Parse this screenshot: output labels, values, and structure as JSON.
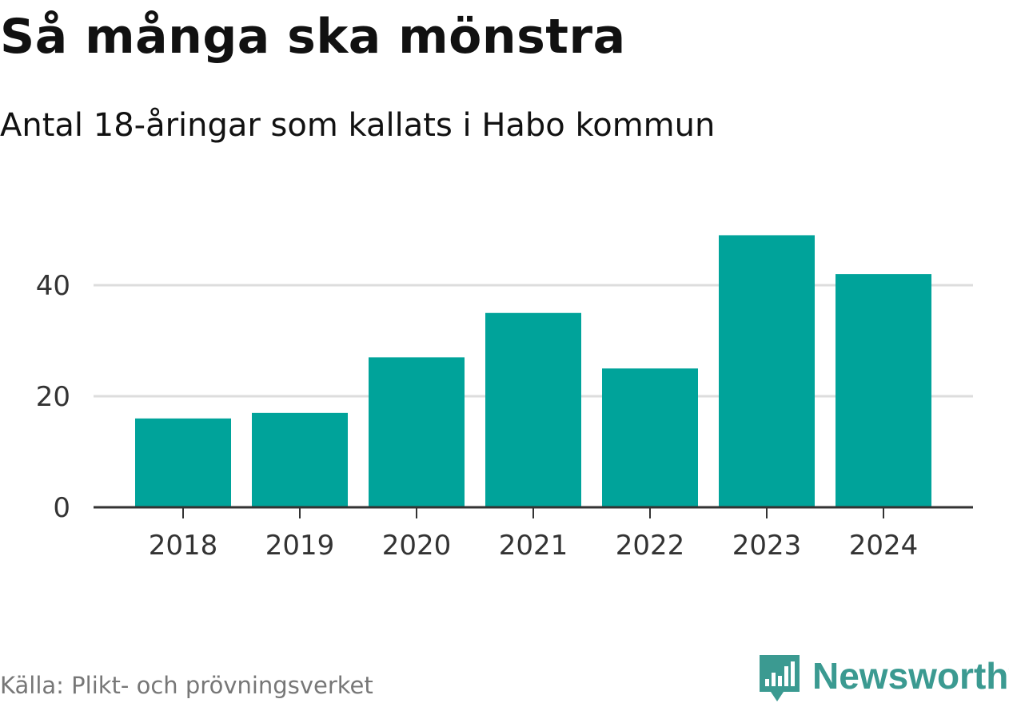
{
  "header": {
    "title": "Så många ska mönstra",
    "subtitle": "Antal 18-åringar som kallats i Habo kommun"
  },
  "footer": {
    "source": "Källa: Plikt- och prövningsverket",
    "brand_name": "Newsworthy",
    "brand_icon": "newsworthy-logo-icon"
  },
  "colors": {
    "bar": "#00a39a",
    "brand": "#3b9a91",
    "grid": "#dddddd",
    "axis": "#333333"
  },
  "chart_data": {
    "type": "bar",
    "title": "Så många ska mönstra",
    "subtitle": "Antal 18-åringar som kallats i Habo kommun",
    "xlabel": "",
    "ylabel": "",
    "categories": [
      "2018",
      "2019",
      "2020",
      "2021",
      "2022",
      "2023",
      "2024"
    ],
    "values": [
      16,
      17,
      27,
      35,
      25,
      49,
      42
    ],
    "ylim": [
      0,
      50
    ],
    "yticks": [
      0,
      20,
      40
    ],
    "grid": true,
    "legend": "none"
  }
}
